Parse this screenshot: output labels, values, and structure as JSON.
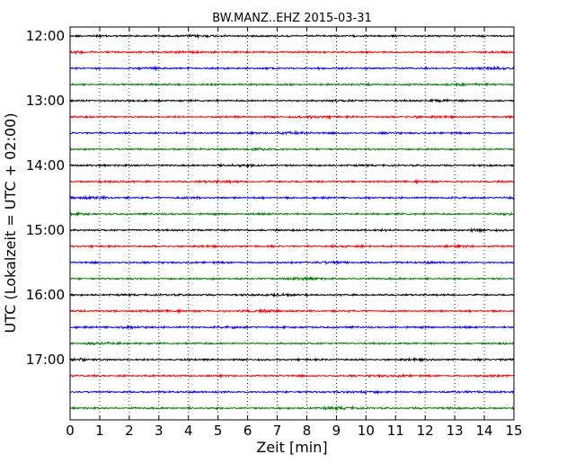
{
  "chart_data": {
    "type": "line",
    "title": "BW.MANZ..EHZ 2015-03-31",
    "xlabel": "Zeit  [min]",
    "ylabel": "UTC (Lokalzeit = UTC + 02:00)",
    "xlim": [
      0,
      15
    ],
    "x_ticks": [
      "0",
      "1",
      "2",
      "3",
      "4",
      "5",
      "6",
      "7",
      "8",
      "9",
      "10",
      "11",
      "12",
      "13",
      "14",
      "15"
    ],
    "y_ticks": [
      "12:00",
      "13:00",
      "14:00",
      "15:00",
      "16:00",
      "17:00"
    ],
    "grid": "vertical dotted lines at each minute",
    "trace_start_times": [
      "12:00",
      "12:15",
      "12:30",
      "12:45",
      "13:00",
      "13:15",
      "13:30",
      "13:45",
      "14:00",
      "14:15",
      "14:30",
      "14:45",
      "15:00",
      "15:15",
      "15:30",
      "15:45",
      "16:00",
      "16:15",
      "16:30",
      "16:45",
      "17:00",
      "17:15",
      "17:30",
      "17:45"
    ],
    "trace_colors": [
      "#000000",
      "#ff0000",
      "#0000ff",
      "#008000"
    ],
    "trace_duration_min": 15
  }
}
